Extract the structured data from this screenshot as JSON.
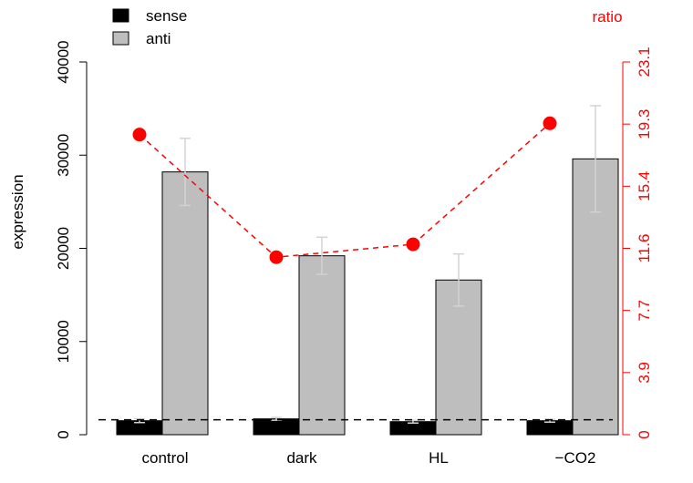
{
  "chart_data": {
    "type": "bar",
    "categories": [
      "control",
      "dark",
      "HL",
      "−CO2"
    ],
    "ylabel": "expression",
    "ylim": [
      0,
      40000
    ],
    "yticks": [
      "0",
      "10000",
      "20000",
      "30000",
      "40000"
    ],
    "series": [
      {
        "name": "sense",
        "color": "#000000",
        "values": [
          1500,
          1700,
          1400,
          1500
        ],
        "err": [
          200,
          150,
          150,
          150
        ]
      },
      {
        "name": "anti",
        "color": "#bebebe",
        "values": [
          28200,
          19200,
          16600,
          29600
        ],
        "err": [
          3600,
          2000,
          2800,
          5700
        ]
      }
    ],
    "ratio": {
      "label": "ratio",
      "color": "#ff0000",
      "values": [
        18.6,
        11.0,
        11.8,
        19.3
      ],
      "ylim": [
        0,
        23.1
      ],
      "yticks": [
        "0",
        "3.9",
        "7.7",
        "11.6",
        "15.4",
        "19.3",
        "23.1"
      ]
    },
    "reference_line": 1600,
    "legend_position": "top-left"
  }
}
